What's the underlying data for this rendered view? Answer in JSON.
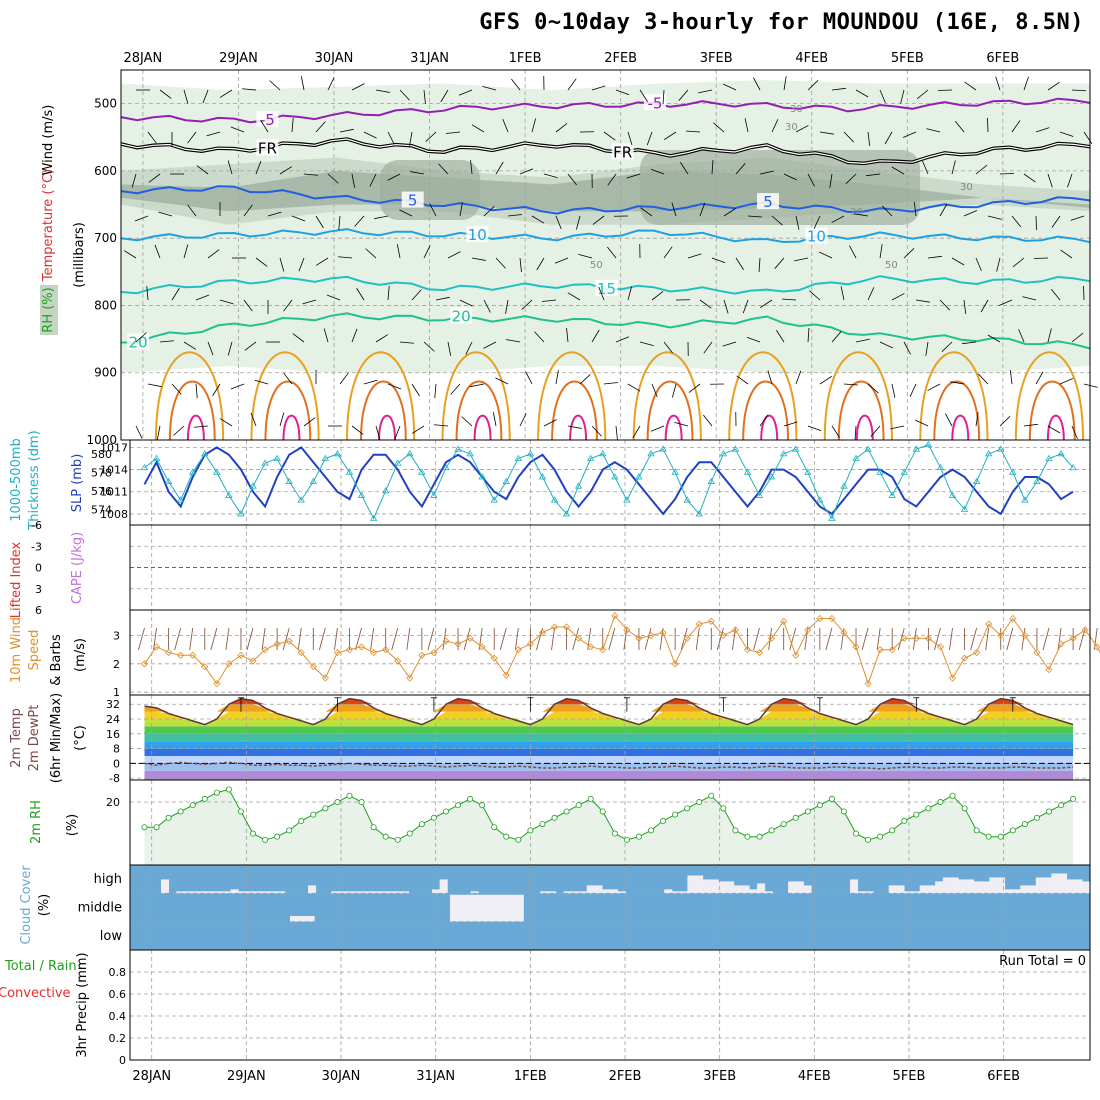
{
  "title": "GFS 0~10day 3-hourly for MOUNDOU (16E, 8.5N)",
  "colors": {
    "frame": "#000000",
    "grid": "#a0a0a0",
    "wind": "#000000",
    "temp": "#e03030",
    "rh": "#20a020",
    "temp_neg": "#9020b0",
    "temp_0": "#000000",
    "temp_5": "#2060e0",
    "temp_10": "#20a0e0",
    "temp_15": "#20c0c0",
    "temp_20": "#20c090",
    "temp_25": "#e8a020",
    "temp_30": "#e07020",
    "temp_35": "#e02090",
    "rh_fill_light": "#e3efe3",
    "rh_fill_mid": "#c4d5c4",
    "rh_fill_dark": "#9fb0a0",
    "slp": "#2040c0",
    "thickness": "#20b0c0",
    "lifted_index": "#e03030",
    "cape": "#c070e0",
    "wind10m": "#e09030",
    "barb10m": "#8a5a40",
    "cloud_bg": "#6aa9d5",
    "cloud_bar": "#f0eef5",
    "precip_total": "#20a020",
    "precip_conv": "#e03030",
    "rh2m": "#20a020",
    "rh2m_fill": "#e8f2e8",
    "dewpt": "#7a4a4a",
    "temp_line": "#000000"
  },
  "chart_data": [
    {
      "panel": "upper-air",
      "type": "heatmap",
      "ylabel_parts": [
        "Wind (m/s)",
        "Temperature (°C)",
        "RH (%)",
        "(millibars)"
      ],
      "yticks": [
        "500",
        "600",
        "700",
        "800",
        "900",
        "1000"
      ],
      "ylim": [
        1000,
        450
      ],
      "date_labels": [
        "28JAN",
        "29JAN",
        "30JAN",
        "31JAN",
        "1FEB",
        "2FEB",
        "3FEB",
        "4FEB",
        "5FEB",
        "6FEB"
      ],
      "isotherms": [
        {
          "value": -5,
          "label": "-5",
          "pressure": [
            520,
            525,
            515,
            505,
            502,
            500,
            508,
            500,
            495
          ]
        },
        {
          "value": 0,
          "label": "FR",
          "pressure": [
            560,
            570,
            555,
            570,
            560,
            575,
            565,
            590,
            570,
            560
          ]
        },
        {
          "value": 5,
          "label": "5",
          "pressure": [
            630,
            625,
            640,
            650,
            660,
            655,
            650,
            660,
            650,
            640
          ]
        },
        {
          "value": 10,
          "label": "10",
          "pressure": [
            700,
            695,
            690,
            695,
            700,
            690,
            705,
            695,
            700,
            702
          ]
        },
        {
          "value": 15,
          "label": "15",
          "pressure": [
            780,
            765,
            760,
            775,
            770,
            775,
            780,
            760,
            765,
            760
          ]
        },
        {
          "value": 20,
          "label": "20",
          "pressure": [
            855,
            830,
            815,
            820,
            820,
            830,
            820,
            845,
            850,
            860
          ]
        }
      ],
      "rh_labels": [
        "30",
        "30",
        "30",
        "30",
        "50",
        "50"
      ]
    },
    {
      "panel": "slp-thickness",
      "type": "line",
      "ylabel_parts": [
        "1000-500mb",
        "Thickness (dm)",
        "SLP (mb)"
      ],
      "yticks_left": [
        "580",
        "578",
        "576",
        "574"
      ],
      "yticks_right": [
        "1017",
        "1014",
        "1011",
        "1008"
      ],
      "ylim_slp": [
        1006.5,
        1018
      ],
      "slp": [
        1012,
        1015,
        1011,
        1009,
        1013,
        1016,
        1017,
        1016,
        1014,
        1011,
        1009,
        1013,
        1016,
        1017,
        1015,
        1013,
        1011,
        1010,
        1014,
        1016,
        1016,
        1014,
        1011,
        1009,
        1012,
        1015,
        1016,
        1015,
        1013,
        1011,
        1010,
        1013,
        1015,
        1016,
        1014,
        1011,
        1009,
        1011,
        1014,
        1015,
        1014,
        1012,
        1010,
        1008,
        1010,
        1013,
        1015,
        1015,
        1013,
        1011,
        1009,
        1011,
        1014,
        1014,
        1013,
        1011,
        1009,
        1008,
        1010,
        1012,
        1014,
        1014,
        1013,
        1010,
        1009,
        1011,
        1013,
        1014,
        1013,
        1011,
        1009,
        1008,
        1011,
        1013,
        1013,
        1012,
        1010,
        1011
      ],
      "thickness": [
        578.5,
        579.5,
        577,
        575,
        578,
        580,
        578,
        575.5,
        573.5,
        576.5,
        579,
        579.5,
        577,
        575,
        577,
        579.5,
        580,
        578,
        575.5,
        573,
        576,
        579,
        580,
        578,
        575.5,
        578.5,
        580.5,
        580,
        577.5,
        575,
        577,
        579.5,
        580,
        577.5,
        575,
        573.5,
        576.5,
        579.5,
        580,
        577.5,
        575,
        577.5,
        580,
        580.5,
        578,
        575,
        573.5,
        577,
        580,
        580.5,
        578,
        575.5,
        577.5,
        580,
        580.5,
        578,
        575,
        573,
        576.5,
        579.5,
        580.5,
        578,
        575.5,
        578,
        580.5,
        581,
        578.5,
        575.5,
        574,
        577,
        580,
        580.5,
        578,
        575,
        577,
        579.5,
        580,
        578.5
      ]
    },
    {
      "panel": "lifted-index-cape",
      "type": "line",
      "ylabel_parts": [
        "Lifted Index",
        "CAPE (J/kg)"
      ],
      "yticks": [
        "-6",
        "-3",
        "0",
        "3",
        "6"
      ],
      "ylim": [
        6,
        -6
      ],
      "lifted_index": [],
      "cape": []
    },
    {
      "panel": "wind10m",
      "type": "line",
      "ylabel_parts": [
        "10m Wind",
        "Speed",
        "& Barbs",
        "(m/s)"
      ],
      "yticks": [
        "1",
        "2",
        "3"
      ],
      "ylim": [
        0.9,
        3.9
      ],
      "values": [
        2.0,
        2.6,
        2.4,
        2.3,
        2.3,
        1.9,
        1.3,
        2.0,
        2.3,
        2.1,
        2.5,
        2.7,
        2.8,
        2.4,
        1.9,
        1.5,
        2.4,
        2.5,
        2.6,
        2.4,
        2.5,
        2.1,
        1.5,
        2.3,
        2.4,
        2.8,
        2.7,
        2.9,
        2.6,
        2.2,
        1.6,
        2.5,
        2.7,
        3.1,
        3.3,
        3.3,
        2.9,
        2.6,
        2.5,
        3.7,
        3.2,
        2.9,
        3.0,
        3.1,
        2.0,
        2.9,
        3.4,
        3.5,
        3.0,
        3.2,
        2.5,
        2.4,
        2.9,
        3.5,
        2.3,
        3.2,
        3.6,
        3.6,
        3.1,
        2.6,
        1.3,
        2.5,
        2.5,
        2.9,
        2.9,
        2.9,
        2.6,
        1.5,
        2.2,
        2.4,
        3.4,
        3.0,
        3.6,
        3.0,
        2.4,
        1.8,
        2.7,
        2.9,
        3.2,
        2.6,
        1.8,
        1.4
      ]
    },
    {
      "panel": "temp-dewpt",
      "type": "area",
      "ylabel_parts": [
        "2m Temp",
        "2m DewPt",
        "(6hr Min/Max)",
        "(°C)"
      ],
      "yticks": [
        "32",
        "24",
        "16",
        "8",
        "0",
        "-8"
      ],
      "ylim": [
        -9,
        37
      ],
      "temp": [
        31,
        30,
        27,
        25,
        23,
        21,
        24,
        32,
        35,
        34,
        30,
        27,
        25,
        23,
        21,
        24,
        32,
        35,
        34,
        30,
        27,
        25,
        23,
        21,
        24,
        32,
        35,
        34,
        30,
        27,
        25,
        23,
        21,
        24,
        32,
        35,
        34,
        30,
        27,
        25,
        23,
        21,
        24,
        32,
        35,
        34,
        30,
        27,
        25,
        23,
        21,
        24,
        32,
        35,
        34,
        30,
        27,
        25,
        23,
        21,
        24,
        32,
        35,
        34,
        30,
        27,
        25,
        23,
        21,
        24,
        32,
        35,
        34,
        30,
        27,
        25,
        23,
        21
      ],
      "dewpt": [
        0,
        -1,
        0,
        0.5,
        0,
        -0.5,
        0,
        0.5,
        0,
        -1,
        -1,
        -0.5,
        -1,
        -1,
        -1.5,
        -1,
        -0.5,
        0,
        -0.5,
        -1,
        -1,
        -1.5,
        -1.5,
        -1,
        -1.5,
        -2,
        -1.5,
        -1,
        -1.5,
        -2,
        -2,
        -1.5,
        -2,
        -2.5,
        -2.5,
        -2,
        -2,
        -1.5,
        -2,
        -2,
        -2.5,
        -2.5,
        -2,
        -2,
        -1.5,
        -2,
        -2.5,
        -2.5,
        -2,
        -2,
        -2.5,
        -2,
        -1.5,
        -2,
        -2.5,
        -2.5,
        -2.5,
        -2,
        -2,
        -2.5,
        -2.5,
        -3,
        -2.5,
        -2,
        -2,
        -2.5,
        -2.5,
        -2,
        -2,
        -2.5,
        -2.5,
        -2.5,
        -2,
        -2,
        -2.5,
        -2.5,
        -2.5,
        -2
      ]
    },
    {
      "panel": "rh2m",
      "type": "area",
      "ylabel_parts": [
        "2m RH",
        "(%)"
      ],
      "yticks": [
        "20"
      ],
      "ylim": [
        0,
        27
      ],
      "values": [
        12,
        12,
        15,
        17,
        19,
        21,
        23,
        24,
        17,
        10,
        8,
        9,
        11,
        14,
        16,
        18,
        20,
        22,
        20,
        12,
        9,
        8,
        10,
        13,
        15,
        17,
        19,
        21,
        19,
        12,
        9,
        8,
        11,
        13,
        15,
        17,
        19,
        21,
        17,
        10,
        8,
        9,
        11,
        14,
        16,
        18,
        20,
        22,
        18,
        11,
        9,
        9,
        11,
        13,
        15,
        17,
        19,
        21,
        17,
        10,
        8,
        9,
        11,
        14,
        16,
        18,
        20,
        22,
        18,
        11,
        9,
        9,
        11,
        13,
        15,
        17,
        19,
        21
      ]
    },
    {
      "panel": "cloud-cover",
      "type": "bar",
      "ylabel_parts": [
        "Cloud Cover",
        "(%)"
      ],
      "ytick_labels": [
        "high",
        "middle",
        "low"
      ],
      "high": [
        0,
        0,
        0,
        0,
        35,
        0,
        5,
        5,
        5,
        5,
        5,
        5,
        5,
        10,
        5,
        5,
        5,
        5,
        5,
        5,
        0,
        0,
        0,
        20,
        0,
        0,
        5,
        5,
        5,
        5,
        5,
        5,
        5,
        5,
        5,
        5,
        0,
        0,
        0,
        10,
        35,
        0,
        0,
        0,
        5,
        0,
        0,
        0,
        0,
        0,
        0,
        0,
        0,
        5,
        5,
        0,
        5,
        5,
        5,
        20,
        20,
        10,
        10,
        5,
        0,
        0,
        0,
        0,
        0,
        10,
        5,
        5,
        45,
        45,
        35,
        35,
        30,
        30,
        20,
        20,
        10,
        25,
        5,
        0,
        0,
        30,
        30,
        20,
        0,
        0,
        0,
        0,
        0,
        35,
        5,
        5,
        0,
        0,
        20,
        20,
        5,
        5,
        20,
        20,
        30,
        40,
        40,
        35,
        35,
        30,
        30,
        40,
        40,
        10,
        10,
        20,
        20,
        40,
        40,
        50,
        50,
        35,
        35,
        30
      ],
      "middle": [
        0,
        0,
        0,
        0,
        0,
        0,
        0,
        0,
        0,
        0,
        0,
        0,
        0,
        0,
        0,
        0,
        0,
        0,
        0,
        0,
        0,
        0,
        0,
        0,
        0,
        0,
        0,
        0,
        0,
        0,
        0,
        0,
        0,
        0,
        0,
        0,
        0,
        0,
        0,
        0,
        0,
        0,
        0,
        0,
        0,
        0,
        0,
        0,
        0,
        0,
        0,
        0,
        0,
        0,
        0,
        0,
        0,
        0,
        0,
        0,
        0,
        0,
        0,
        0,
        0,
        0,
        0,
        0,
        0,
        0,
        0,
        0,
        0,
        0,
        0,
        0,
        0,
        0,
        0,
        0
      ],
      "middle_spans": [
        {
          "from": 13,
          "to": 15,
          "level": 0.2
        },
        {
          "from": 26,
          "to": 32,
          "level": 0.95
        }
      ]
    },
    {
      "panel": "precip",
      "type": "bar",
      "ylabel_parts": [
        "Total / Rain",
        "Convective",
        "3hr Precip (mm)"
      ],
      "yticks": [
        "0",
        "0.2",
        "0.4",
        "0.6",
        "0.8"
      ],
      "ylim": [
        0,
        1.0
      ],
      "run_total_label": "Run Total = 0",
      "total": [],
      "convective": []
    }
  ]
}
